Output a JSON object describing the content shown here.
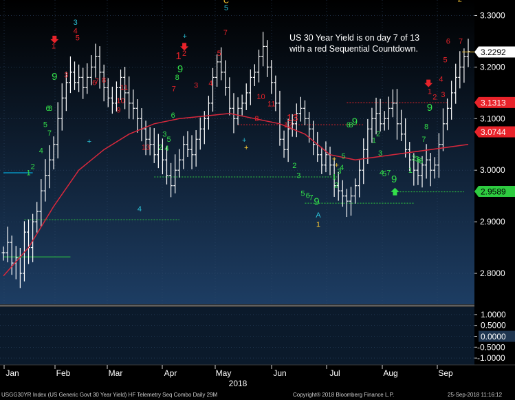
{
  "annotation": "US 30 Year Yield is on day 7 of 13 with a red Sequential Countdown.",
  "footer": {
    "left": "USGG30YR Index (US Generic Govt 30 Year Yield) HF Telemetry Seq Combo  Daily 29M",
    "center": "Copyright® 2018 Bloomberg Finance L.P.",
    "right": "25-Sep-2018 11:16:12"
  },
  "colors": {
    "background_top": "#000000",
    "background_bottom": "#1d3d63",
    "price_bar": "#ffffff",
    "moving_average": "#d8283c",
    "sequential_buy": "#33e04a",
    "sequential_sell": "#e8232a",
    "tdst_support": "#2ecc40",
    "tdst_resistance": "#e8232a"
  },
  "chart_data": {
    "type": "ohlc",
    "title": "",
    "year": "2018",
    "months": [
      "Jan",
      "Feb",
      "Mar",
      "Apr",
      "May",
      "Jun",
      "Jul",
      "Aug",
      "Sep"
    ],
    "ylim": [
      2.74,
      3.33
    ],
    "y_ticks": [
      "3.3000",
      "3.2000",
      "3.1000",
      "3.0000",
      "2.9000",
      "2.8000"
    ],
    "price_labels": [
      {
        "text": "3.2292",
        "value": 3.2292,
        "bg": "#ffffff",
        "fg": "#000000"
      },
      {
        "text": "3.1313",
        "value": 3.1313,
        "bg": "#e8232a",
        "fg": "#ffffff"
      },
      {
        "text": "3.0744",
        "value": 3.0744,
        "bg": "#e8232a",
        "fg": "#ffffff"
      },
      {
        "text": "2.9589",
        "value": 2.9589,
        "bg": "#2ecc40",
        "fg": "#000000"
      }
    ],
    "close_series": [
      2.84,
      2.86,
      2.82,
      2.83,
      2.8,
      2.88,
      2.85,
      2.9,
      2.92,
      2.96,
      2.99,
      3.02,
      3.05,
      3.1,
      3.14,
      3.17,
      3.19,
      3.17,
      3.18,
      3.16,
      3.18,
      3.2,
      3.22,
      3.19,
      3.16,
      3.14,
      3.13,
      3.16,
      3.18,
      3.15,
      3.13,
      3.12,
      3.1,
      3.08,
      3.06,
      3.05,
      3.03,
      3.04,
      3.02,
      2.99,
      2.97,
      3.0,
      3.02,
      3.05,
      3.04,
      3.03,
      3.06,
      3.08,
      3.1,
      3.13,
      3.18,
      3.21,
      3.19,
      3.16,
      3.12,
      3.1,
      3.12,
      3.13,
      3.15,
      3.18,
      3.19,
      3.22,
      3.24,
      3.2,
      3.17,
      3.13,
      3.06,
      3.04,
      3.08,
      3.09,
      3.11,
      3.12,
      3.1,
      3.08,
      3.05,
      3.03,
      3.01,
      3.03,
      3.01,
      2.97,
      2.96,
      2.95,
      2.94,
      2.95,
      2.97,
      3.0,
      3.04,
      3.08,
      3.1,
      3.11,
      3.09,
      3.1,
      3.12,
      3.13,
      3.09,
      3.07,
      3.04,
      3.02,
      3.0,
      2.99,
      3.01,
      3.02,
      3.0,
      3.01,
      3.05,
      3.09,
      3.12,
      3.15,
      3.18,
      3.2,
      3.22,
      3.23
    ],
    "moving_average_values": [
      2.795,
      2.85,
      2.93,
      3.0,
      3.04,
      3.07,
      3.09,
      3.1,
      3.105,
      3.11,
      3.1,
      3.09,
      3.07,
      3.03,
      3.02,
      3.05
    ],
    "moving_average_x": [
      0,
      6,
      12,
      18,
      24,
      30,
      36,
      42,
      48,
      54,
      60,
      66,
      72,
      78,
      84,
      111
    ],
    "tdst_lines": [
      {
        "value": 2.995,
        "color": "#00c8ff",
        "x_from": 0,
        "x_to": 7
      },
      {
        "value": 2.832,
        "color": "#2ecc40",
        "x_from": 0,
        "x_to": 16
      },
      {
        "value": 2.904,
        "color": "#2ecc40",
        "x_from": 5,
        "x_to": 42
      },
      {
        "value": 2.987,
        "color": "#2ecc40",
        "x_from": 36,
        "x_to": 80
      },
      {
        "value": 2.936,
        "color": "#2ecc40",
        "x_from": 72,
        "x_to": 98
      },
      {
        "value": 2.958,
        "color": "#2ecc40",
        "x_from": 94,
        "x_to": 110
      },
      {
        "value": 3.088,
        "color": "#e8232a",
        "x_from": 56,
        "x_to": 86
      },
      {
        "value": 3.131,
        "color": "#e8232a",
        "x_from": 82,
        "x_to": 106
      }
    ],
    "sequential_labels": [
      {
        "text": "1",
        "x": 6,
        "y": 2.99,
        "color": "#33e04a",
        "size": 11
      },
      {
        "text": "2",
        "x": 7,
        "y": 3.002,
        "color": "#33e04a",
        "size": 11
      },
      {
        "text": "4",
        "x": 9,
        "y": 3.033,
        "color": "#33e04a",
        "size": 11
      },
      {
        "text": "5",
        "x": 10,
        "y": 3.084,
        "color": "#33e04a",
        "size": 11
      },
      {
        "text": "6",
        "x": 10.6,
        "y": 3.115,
        "color": "#33e04a",
        "size": 11
      },
      {
        "text": "8",
        "x": 11.2,
        "y": 3.115,
        "color": "#33e04a",
        "size": 11
      },
      {
        "text": "7",
        "x": 11,
        "y": 3.067,
        "color": "#33e04a",
        "size": 11
      },
      {
        "text": "9",
        "x": 12.2,
        "y": 3.175,
        "color": "#33e04a",
        "size": 15
      },
      {
        "text": "1",
        "x": 12,
        "y": 3.236,
        "color": "#e8232a",
        "size": 11
      },
      {
        "text": "3",
        "x": 15,
        "y": 3.18,
        "color": "#e8232a",
        "size": 11
      },
      {
        "text": "3",
        "x": 17.2,
        "y": 3.282,
        "color": "#2bc0d6",
        "size": 11
      },
      {
        "text": "4",
        "x": 17.2,
        "y": 3.265,
        "color": "#e8232a",
        "size": 11
      },
      {
        "text": "5",
        "x": 17.7,
        "y": 3.252,
        "color": "#e8232a",
        "size": 11
      },
      {
        "text": "6",
        "x": 21.7,
        "y": 3.165,
        "color": "#e8232a",
        "size": 11
      },
      {
        "text": "7",
        "x": 22.3,
        "y": 3.168,
        "color": "#e8232a",
        "size": 11
      },
      {
        "text": "8",
        "x": 24,
        "y": 3.17,
        "color": "#e8232a",
        "size": 11
      },
      {
        "text": "10",
        "x": 28,
        "y": 3.13,
        "color": "#e8232a",
        "size": 11
      },
      {
        "text": "11",
        "x": 28.8,
        "y": 3.155,
        "color": "#e8232a",
        "size": 11
      },
      {
        "text": "9",
        "x": 27.5,
        "y": 3.112,
        "color": "#e8232a",
        "size": 11
      },
      {
        "text": "13",
        "x": 34,
        "y": 3.04,
        "color": "#e8232a",
        "size": 11
      },
      {
        "text": "2",
        "x": 37.5,
        "y": 3.04,
        "color": "#33e04a",
        "size": 11
      },
      {
        "text": "4",
        "x": 39,
        "y": 3.038,
        "color": "#33e04a",
        "size": 11
      },
      {
        "text": "3",
        "x": 38.5,
        "y": 3.065,
        "color": "#33e04a",
        "size": 11
      },
      {
        "text": "5",
        "x": 39.5,
        "y": 3.055,
        "color": "#33e04a",
        "size": 11
      },
      {
        "text": "4",
        "x": 32.5,
        "y": 2.92,
        "color": "#2bc0d6",
        "size": 11
      },
      {
        "text": "6",
        "x": 40.5,
        "y": 3.102,
        "color": "#33e04a",
        "size": 11
      },
      {
        "text": "7",
        "x": 40.7,
        "y": 3.153,
        "color": "#e8232a",
        "size": 11
      },
      {
        "text": "8",
        "x": 41.5,
        "y": 3.175,
        "color": "#33e04a",
        "size": 11
      },
      {
        "text": "9",
        "x": 42.2,
        "y": 3.19,
        "color": "#33e04a",
        "size": 15
      },
      {
        "text": "1",
        "x": 41.8,
        "y": 3.215,
        "color": "#e8232a",
        "size": 15
      },
      {
        "text": "2",
        "x": 43.2,
        "y": 3.222,
        "color": "#e8232a",
        "size": 11
      },
      {
        "text": "3",
        "x": 46,
        "y": 3.16,
        "color": "#e8232a",
        "size": 11
      },
      {
        "text": "4",
        "x": 49.5,
        "y": 3.164,
        "color": "#e8232a",
        "size": 11
      },
      {
        "text": "5",
        "x": 51.5,
        "y": 3.222,
        "color": "#e8232a",
        "size": 11
      },
      {
        "text": "7",
        "x": 53,
        "y": 3.262,
        "color": "#e8232a",
        "size": 11
      },
      {
        "text": "5",
        "x": 53.2,
        "y": 3.31,
        "color": "#2bc0d6",
        "size": 11
      },
      {
        "text": "C",
        "x": 53.2,
        "y": 3.324,
        "color": "#ffcc33",
        "size": 11
      },
      {
        "text": "10",
        "x": 61.5,
        "y": 3.138,
        "color": "#e8232a",
        "size": 11
      },
      {
        "text": "11",
        "x": 64,
        "y": 3.124,
        "color": "#e8232a",
        "size": 11
      },
      {
        "text": "8",
        "x": 60.5,
        "y": 3.095,
        "color": "#e8232a",
        "size": 11
      },
      {
        "text": "13",
        "x": 69,
        "y": 3.095,
        "color": "#e8232a",
        "size": 15
      },
      {
        "text": "12",
        "x": 68,
        "y": 3.083,
        "color": "#e8232a",
        "size": 11
      },
      {
        "text": "2",
        "x": 69.5,
        "y": 3.004,
        "color": "#33e04a",
        "size": 11
      },
      {
        "text": "3",
        "x": 70.5,
        "y": 2.985,
        "color": "#33e04a",
        "size": 11
      },
      {
        "text": "5",
        "x": 71.5,
        "y": 2.95,
        "color": "#33e04a",
        "size": 11
      },
      {
        "text": "6",
        "x": 72.7,
        "y": 2.946,
        "color": "#33e04a",
        "size": 11
      },
      {
        "text": "7",
        "x": 73.5,
        "y": 2.942,
        "color": "#33e04a",
        "size": 11
      },
      {
        "text": "9",
        "x": 74.8,
        "y": 2.933,
        "color": "#33e04a",
        "size": 15
      },
      {
        "text": "A",
        "x": 75.2,
        "y": 2.908,
        "color": "#2bc0d6",
        "size": 11
      },
      {
        "text": "1",
        "x": 75.2,
        "y": 2.89,
        "color": "#ffcc33",
        "size": 11
      },
      {
        "text": "1",
        "x": 79,
        "y": 2.982,
        "color": "#33e04a",
        "size": 11
      },
      {
        "text": "2",
        "x": 79.5,
        "y": 2.966,
        "color": "#33e04a",
        "size": 11
      },
      {
        "text": "3",
        "x": 80.2,
        "y": 2.993,
        "color": "#33e04a",
        "size": 11
      },
      {
        "text": "4",
        "x": 80.8,
        "y": 3.0,
        "color": "#33e04a",
        "size": 11
      },
      {
        "text": "5",
        "x": 81.2,
        "y": 3.022,
        "color": "#33e04a",
        "size": 11
      },
      {
        "text": "6",
        "x": 82.4,
        "y": 3.083,
        "color": "#33e04a",
        "size": 11
      },
      {
        "text": "8",
        "x": 83,
        "y": 3.083,
        "color": "#33e04a",
        "size": 11
      },
      {
        "text": "9",
        "x": 83.9,
        "y": 3.088,
        "color": "#33e04a",
        "size": 15
      },
      {
        "text": "1",
        "x": 88.5,
        "y": 3.053,
        "color": "#33e04a",
        "size": 11
      },
      {
        "text": "2",
        "x": 89.5,
        "y": 3.066,
        "color": "#33e04a",
        "size": 11
      },
      {
        "text": "3",
        "x": 90,
        "y": 3.028,
        "color": "#33e04a",
        "size": 11
      },
      {
        "text": "4",
        "x": 90.3,
        "y": 2.99,
        "color": "#33e04a",
        "size": 11
      },
      {
        "text": "5",
        "x": 91,
        "y": 2.988,
        "color": "#33e04a",
        "size": 11
      },
      {
        "text": "7",
        "x": 92,
        "y": 2.99,
        "color": "#33e04a",
        "size": 11
      },
      {
        "text": "9",
        "x": 93.3,
        "y": 2.976,
        "color": "#33e04a",
        "size": 15
      },
      {
        "text": "1",
        "x": 97.2,
        "y": 2.995,
        "color": "#33e04a",
        "size": 11
      },
      {
        "text": "2",
        "x": 98,
        "y": 3.019,
        "color": "#33e04a",
        "size": 11
      },
      {
        "text": "3",
        "x": 98.8,
        "y": 3.017,
        "color": "#33e04a",
        "size": 11
      },
      {
        "text": "5",
        "x": 99.2,
        "y": 3.015,
        "color": "#33e04a",
        "size": 11
      },
      {
        "text": "6",
        "x": 99.7,
        "y": 3.013,
        "color": "#33e04a",
        "size": 11
      },
      {
        "text": "7",
        "x": 100.4,
        "y": 3.055,
        "color": "#33e04a",
        "size": 11
      },
      {
        "text": "8",
        "x": 101,
        "y": 3.08,
        "color": "#33e04a",
        "size": 11
      },
      {
        "text": "9",
        "x": 101.8,
        "y": 3.115,
        "color": "#33e04a",
        "size": 15
      },
      {
        "text": "1",
        "x": 101.8,
        "y": 3.148,
        "color": "#e8232a",
        "size": 11
      },
      {
        "text": "2",
        "x": 103,
        "y": 3.137,
        "color": "#e8232a",
        "size": 11
      },
      {
        "text": "3",
        "x": 105,
        "y": 3.142,
        "color": "#e8232a",
        "size": 11
      },
      {
        "text": "4",
        "x": 104.5,
        "y": 3.172,
        "color": "#e8232a",
        "size": 11
      },
      {
        "text": "5",
        "x": 105.5,
        "y": 3.209,
        "color": "#e8232a",
        "size": 11
      },
      {
        "text": "6",
        "x": 106.2,
        "y": 3.245,
        "color": "#e8232a",
        "size": 11
      },
      {
        "text": "7",
        "x": 109.2,
        "y": 3.245,
        "color": "#e8232a",
        "size": 11
      },
      {
        "text": "2",
        "x": 109,
        "y": 3.327,
        "color": "#ffcc33",
        "size": 11
      }
    ],
    "sell_arrows": [
      {
        "x": 12.2,
        "y": 3.25
      },
      {
        "x": 43.2,
        "y": 3.236
      },
      {
        "x": 101.5,
        "y": 3.165
      }
    ],
    "buy_arrows": [
      {
        "x": 93.5,
        "y": 2.962
      }
    ],
    "plus_marks": [
      {
        "x": 20.5,
        "y": 3.051,
        "color": "#2bc0d6"
      },
      {
        "x": 43.3,
        "y": 3.255,
        "color": "#2bc0d6"
      },
      {
        "x": 57.5,
        "y": 3.054,
        "color": "#2bc0d6"
      },
      {
        "x": 58,
        "y": 3.039,
        "color": "#ffcc33"
      },
      {
        "x": 79,
        "y": 3.017,
        "color": "#ffcc33"
      },
      {
        "x": 79.6,
        "y": 3.005,
        "color": "#ffcc33"
      }
    ],
    "lower_panel": {
      "y_ticks": [
        "1.0000",
        "0.5000",
        "0.0000",
        "-0.5000",
        "-1.0000"
      ],
      "current_value_label": "0.0000",
      "ylim": [
        -1.25,
        1.25
      ]
    }
  }
}
